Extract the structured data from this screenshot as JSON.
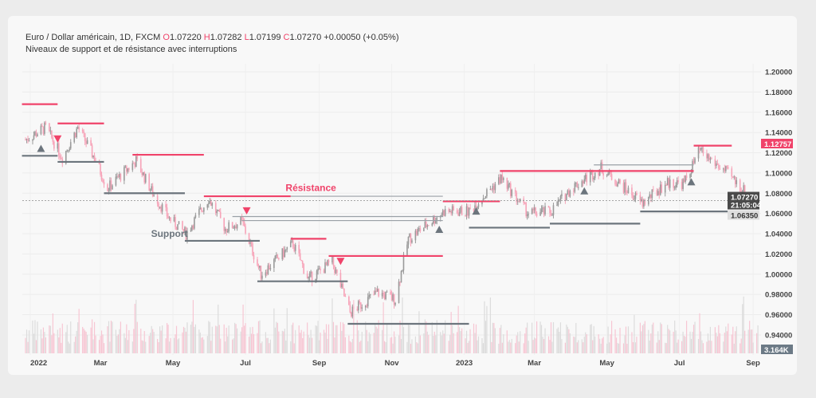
{
  "header": {
    "symbol": "Euro / Dollar américain, 1D, FXCM",
    "o_label": "O",
    "o": "1.07220",
    "h_label": "H",
    "h": "1.07282",
    "l_label": "L",
    "l": "1.07199",
    "c_label": "C",
    "c": "1.07270",
    "change": "+0.00050 (+0.05%)",
    "indicator": "Niveaux de support et de résistance avec interruptions"
  },
  "chart_data": {
    "type": "candlestick",
    "ylim": [
      0.93,
      1.21
    ],
    "y_ticks": [
      "1.20000",
      "1.18000",
      "1.16000",
      "1.14000",
      "1.12000",
      "1.10000",
      "1.08000",
      "1.06000",
      "1.04000",
      "1.02000",
      "1.00000",
      "0.98000",
      "0.96000",
      "0.94000"
    ],
    "x_ticks": [
      {
        "date": "2022-01-01",
        "label": "2022"
      },
      {
        "date": "2022-03-01",
        "label": "Mar"
      },
      {
        "date": "2022-05-01",
        "label": "May"
      },
      {
        "date": "2022-07-01",
        "label": "Jul"
      },
      {
        "date": "2022-09-01",
        "label": "Sep"
      },
      {
        "date": "2022-11-01",
        "label": "Nov"
      },
      {
        "date": "2023-01-01",
        "label": "2023"
      },
      {
        "date": "2023-03-01",
        "label": "Mar"
      },
      {
        "date": "2023-05-01",
        "label": "May"
      },
      {
        "date": "2023-07-01",
        "label": "Jul"
      },
      {
        "date": "2023-09-01",
        "label": "Sep"
      }
    ],
    "price_path": [
      [
        "2021-12-28",
        1.133
      ],
      [
        "2022-01-14",
        1.145
      ],
      [
        "2022-01-28",
        1.115
      ],
      [
        "2022-02-10",
        1.145
      ],
      [
        "2022-02-24",
        1.115
      ],
      [
        "2022-03-07",
        1.085
      ],
      [
        "2022-03-31",
        1.112
      ],
      [
        "2022-04-14",
        1.08
      ],
      [
        "2022-04-28",
        1.055
      ],
      [
        "2022-05-12",
        1.04
      ],
      [
        "2022-05-31",
        1.075
      ],
      [
        "2022-06-14",
        1.045
      ],
      [
        "2022-06-28",
        1.052
      ],
      [
        "2022-07-14",
        1.0
      ],
      [
        "2022-08-10",
        1.03
      ],
      [
        "2022-08-23",
        0.995
      ],
      [
        "2022-09-12",
        1.012
      ],
      [
        "2022-09-27",
        0.962
      ],
      [
        "2022-10-20",
        0.982
      ],
      [
        "2022-11-04",
        0.975
      ],
      [
        "2022-11-15",
        1.035
      ],
      [
        "2022-12-15",
        1.062
      ],
      [
        "2023-01-05",
        1.062
      ],
      [
        "2023-02-01",
        1.095
      ],
      [
        "2023-02-24",
        1.06
      ],
      [
        "2023-03-15",
        1.062
      ],
      [
        "2023-04-01",
        1.085
      ],
      [
        "2023-04-26",
        1.105
      ],
      [
        "2023-05-31",
        1.07
      ],
      [
        "2023-06-20",
        1.09
      ],
      [
        "2023-07-05",
        1.09
      ],
      [
        "2023-07-18",
        1.122
      ],
      [
        "2023-08-10",
        1.1
      ],
      [
        "2023-08-25",
        1.082
      ],
      [
        "2023-09-05",
        1.0727
      ]
    ],
    "resistance_levels": [
      [
        "2021-12-25",
        "2022-01-24",
        1.168
      ],
      [
        "2022-01-24",
        "2022-03-04",
        1.149
      ],
      [
        "2022-03-28",
        "2022-05-27",
        1.118
      ],
      [
        "2022-05-27",
        "2022-08-08",
        1.077
      ],
      [
        "2022-08-08",
        "2022-09-07",
        1.035
      ],
      [
        "2022-09-09",
        "2022-12-14",
        1.018
      ],
      [
        "2022-12-14",
        "2023-01-31",
        1.072
      ],
      [
        "2023-01-31",
        "2023-07-13",
        1.102
      ],
      [
        "2023-07-13",
        "2023-08-14",
        1.127
      ]
    ],
    "broken_levels": [
      [
        "2022-08-08",
        "2022-12-14",
        1.077
      ],
      [
        "2022-06-20",
        "2022-12-14",
        1.057
      ],
      [
        "2022-06-28",
        "2022-12-14",
        1.053
      ],
      [
        "2023-04-20",
        "2023-07-13",
        1.108
      ]
    ],
    "support_levels": [
      [
        "2021-12-25",
        "2022-01-24",
        1.117
      ],
      [
        "2022-01-24",
        "2022-03-04",
        1.111
      ],
      [
        "2022-03-04",
        "2022-05-11",
        1.08
      ],
      [
        "2022-05-11",
        "2022-07-13",
        1.033
      ],
      [
        "2022-07-11",
        "2022-09-25",
        0.993
      ],
      [
        "2022-09-25",
        "2023-01-05",
        0.951
      ],
      [
        "2023-01-05",
        "2023-03-14",
        1.046
      ],
      [
        "2023-03-14",
        "2023-05-29",
        1.05
      ],
      [
        "2023-05-29",
        "2023-08-14",
        1.062
      ]
    ],
    "break_down_markers": [
      [
        "2022-01-24",
        1.134
      ],
      [
        "2022-07-02",
        1.063
      ],
      [
        "2022-09-19",
        1.013
      ]
    ],
    "break_up_markers": [
      [
        "2022-01-10",
        1.124
      ],
      [
        "2022-12-11",
        1.044
      ],
      [
        "2023-01-11",
        1.062
      ],
      [
        "2023-04-12",
        1.082
      ],
      [
        "2023-07-11",
        1.091
      ]
    ],
    "annotations": [
      {
        "text": "Résistance",
        "date": "2022-08-25",
        "price": 1.082
      },
      {
        "text": "Support",
        "date": "2022-04-28",
        "price": 1.037
      }
    ],
    "price_labels": {
      "high_marker": "1.12757",
      "last": "1.07270",
      "countdown": "21:05:04",
      "low_marker": "1.06350",
      "volume": "3.164K"
    },
    "colors": {
      "up": "#9a9a9a",
      "down": "#f7a3b8",
      "resistance": "#f0436a",
      "support": "#6c757d",
      "broken": "#9aa0a6",
      "volume_up": "#dcdcdc",
      "volume_down": "#f7c6d3"
    }
  }
}
